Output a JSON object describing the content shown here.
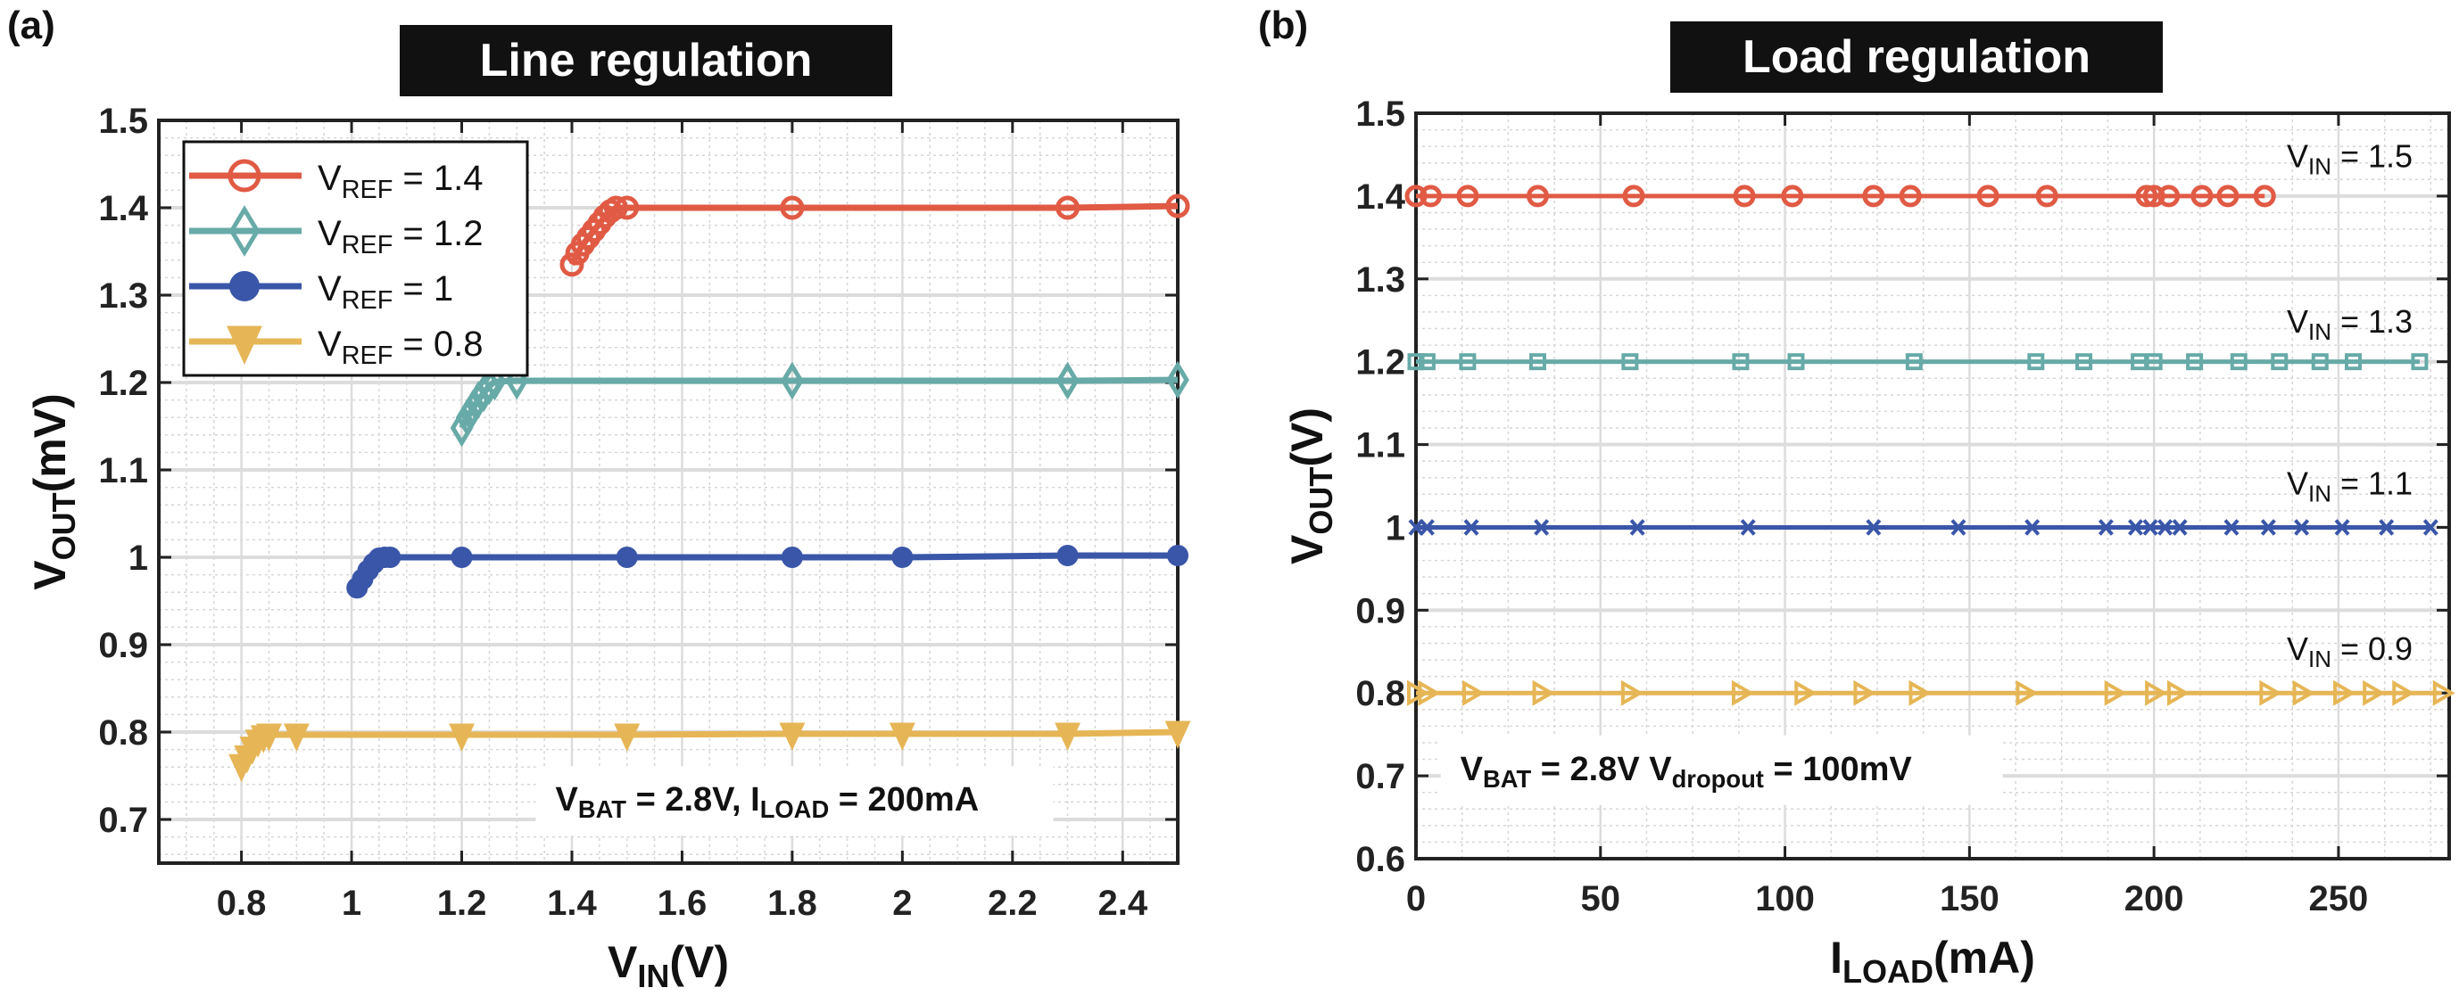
{
  "panels": {
    "a": {
      "label": "(a)",
      "title": "Line regulation"
    },
    "b": {
      "label": "(b)",
      "title": "Load regulation"
    }
  },
  "chart_data": [
    {
      "type": "line",
      "panel": "(a)",
      "title": "Line regulation",
      "xlabel": "V_IN(V)",
      "xlabel_main": "V",
      "xlabel_sub": "IN",
      "xlabel_unit": "(V)",
      "ylabel": "V_OUT(mV)",
      "ylabel_main": "V",
      "ylabel_sub": "OUT",
      "ylabel_unit": "(mV)",
      "xlim": [
        0.65,
        2.5
      ],
      "ylim": [
        0.65,
        1.5
      ],
      "xticks": [
        0.8,
        1,
        1.2,
        1.4,
        1.6,
        1.8,
        2,
        2.2,
        2.4
      ],
      "xtick_labels": [
        "0.8",
        "1",
        "1.2",
        "1.4",
        "1.6",
        "1.8",
        "2",
        "2.2",
        "2.4"
      ],
      "yticks": [
        0.7,
        0.8,
        0.9,
        1.0,
        1.1,
        1.2,
        1.3,
        1.4,
        1.5
      ],
      "ytick_labels": [
        "0.7",
        "0.8",
        "0.9",
        "1",
        "1.1",
        "1.2",
        "1.3",
        "1.4",
        "1.5"
      ],
      "grid": true,
      "legend_position": "top-left",
      "annotation": {
        "main": "V",
        "sub1": "BAT",
        "mid": " = 2.8V, I",
        "sub2": "LOAD",
        "tail": " = 200mA"
      },
      "series": [
        {
          "name": "VREF = 1.4",
          "legend_main": "V",
          "legend_sub": "REF",
          "legend_tail": " = 1.4",
          "color": "#e05a44",
          "marker": "circle-open",
          "x": [
            1.4,
            1.41,
            1.42,
            1.43,
            1.44,
            1.45,
            1.46,
            1.47,
            1.48,
            1.5,
            1.8,
            2.3,
            2.5
          ],
          "y": [
            1.335,
            1.348,
            1.358,
            1.366,
            1.374,
            1.382,
            1.39,
            1.396,
            1.4,
            1.4,
            1.4,
            1.4,
            1.402
          ]
        },
        {
          "name": "VREF = 1.2",
          "legend_main": "V",
          "legend_sub": "REF",
          "legend_tail": " = 1.2",
          "color": "#67aaa8",
          "marker": "diamond-open",
          "x": [
            1.2,
            1.21,
            1.22,
            1.23,
            1.24,
            1.25,
            1.26,
            1.3,
            1.8,
            2.3,
            2.5
          ],
          "y": [
            1.148,
            1.16,
            1.17,
            1.18,
            1.188,
            1.196,
            1.201,
            1.202,
            1.202,
            1.202,
            1.203
          ]
        },
        {
          "name": "VREF = 1",
          "legend_main": "V",
          "legend_sub": "REF",
          "legend_tail": " = 1",
          "color": "#3a56a8",
          "marker": "circle-filled",
          "x": [
            1.01,
            1.02,
            1.03,
            1.04,
            1.05,
            1.06,
            1.07,
            1.2,
            1.5,
            1.8,
            2.0,
            2.3,
            2.5
          ],
          "y": [
            0.965,
            0.975,
            0.985,
            0.993,
            0.999,
            1.0,
            1.0,
            1.0,
            1.0,
            1.0,
            1.0,
            1.002,
            1.002
          ]
        },
        {
          "name": "VREF = 0.8",
          "legend_main": "V",
          "legend_sub": "REF",
          "legend_tail": " = 0.8",
          "color": "#e6b656",
          "marker": "triangle-down-open",
          "x": [
            0.8,
            0.81,
            0.82,
            0.83,
            0.84,
            0.85,
            0.9,
            1.2,
            1.5,
            1.8,
            2.0,
            2.3,
            2.5
          ],
          "y": [
            0.762,
            0.772,
            0.782,
            0.79,
            0.795,
            0.797,
            0.797,
            0.797,
            0.797,
            0.798,
            0.798,
            0.798,
            0.8
          ]
        }
      ]
    },
    {
      "type": "line",
      "panel": "(b)",
      "title": "Load regulation",
      "xlabel": "I_LOAD(mA)",
      "xlabel_main": "I",
      "xlabel_sub": "LOAD",
      "xlabel_unit": "(mA)",
      "ylabel": "V_OUT(V)",
      "ylabel_main": "V",
      "ylabel_sub": "OUT",
      "ylabel_unit": "(V)",
      "xlim": [
        0,
        280
      ],
      "ylim": [
        0.6,
        1.5
      ],
      "xticks": [
        0,
        50,
        100,
        150,
        200,
        250
      ],
      "xtick_labels": [
        "0",
        "50",
        "100",
        "150",
        "200",
        "250"
      ],
      "yticks": [
        0.6,
        0.7,
        0.8,
        0.9,
        1.0,
        1.1,
        1.2,
        1.3,
        1.4,
        1.5
      ],
      "ytick_labels": [
        "0.6",
        "0.7",
        "0.8",
        "0.9",
        "1",
        "1.1",
        "1.2",
        "1.3",
        "1.4",
        "1.5"
      ],
      "grid": true,
      "legend_position": "none",
      "annotation": {
        "main": "V",
        "sub1": "BAT",
        "mid": " = 2.8V V",
        "sub2": "dropout",
        "tail": " = 100mV"
      },
      "series": [
        {
          "name": "VIN = 1.5",
          "label_main": "V",
          "label_sub": "IN",
          "label_tail": " = 1.5",
          "label_y": 1.45,
          "color": "#e05a44",
          "marker": "circle-open",
          "x": [
            0,
            4,
            14,
            33,
            59,
            89,
            102,
            124,
            134,
            155,
            171,
            198,
            200,
            204,
            213,
            220,
            230
          ],
          "y": [
            1.4,
            1.4,
            1.4,
            1.4,
            1.4,
            1.4,
            1.4,
            1.4,
            1.4,
            1.4,
            1.4,
            1.4,
            1.4,
            1.4,
            1.4,
            1.4,
            1.4
          ]
        },
        {
          "name": "VIN = 1.3",
          "label_main": "V",
          "label_sub": "IN",
          "label_tail": " = 1.3",
          "label_y": 1.25,
          "color": "#67aaa8",
          "marker": "square-open",
          "x": [
            0,
            3,
            14,
            33,
            58,
            88,
            103,
            135,
            168,
            181,
            196,
            200,
            211,
            223,
            234,
            245,
            254,
            272
          ],
          "y": [
            1.2,
            1.2,
            1.2,
            1.2,
            1.2,
            1.2,
            1.2,
            1.2,
            1.2,
            1.2,
            1.2,
            1.2,
            1.2,
            1.2,
            1.2,
            1.2,
            1.2,
            1.2
          ]
        },
        {
          "name": "VIN = 1.1",
          "label_main": "V",
          "label_sub": "IN",
          "label_tail": " = 1.1",
          "label_y": 1.055,
          "color": "#3a56a8",
          "marker": "x",
          "x": [
            0,
            3,
            15,
            34,
            60,
            90,
            124,
            147,
            167,
            187,
            195,
            199,
            203,
            207,
            221,
            231,
            240,
            251,
            263,
            275
          ],
          "y": [
            1.0,
            1.0,
            1.0,
            1.0,
            1.0,
            1.0,
            1.0,
            1.0,
            1.0,
            1.0,
            1.0,
            1.0,
            1.0,
            1.0,
            1.0,
            1.0,
            1.0,
            1.0,
            1.0,
            1.0
          ]
        },
        {
          "name": "VIN = 0.9",
          "label_main": "V",
          "label_sub": "IN",
          "label_tail": " = 0.9",
          "label_y": 0.855,
          "color": "#e6b656",
          "marker": "triangle-right-open",
          "x": [
            0,
            3,
            15,
            34,
            58,
            88,
            105,
            121,
            136,
            165,
            189,
            200,
            206,
            231,
            240,
            251,
            259,
            267,
            278
          ],
          "y": [
            0.8,
            0.8,
            0.8,
            0.8,
            0.8,
            0.8,
            0.8,
            0.8,
            0.8,
            0.8,
            0.8,
            0.8,
            0.8,
            0.8,
            0.8,
            0.8,
            0.8,
            0.8,
            0.8
          ]
        }
      ]
    }
  ]
}
